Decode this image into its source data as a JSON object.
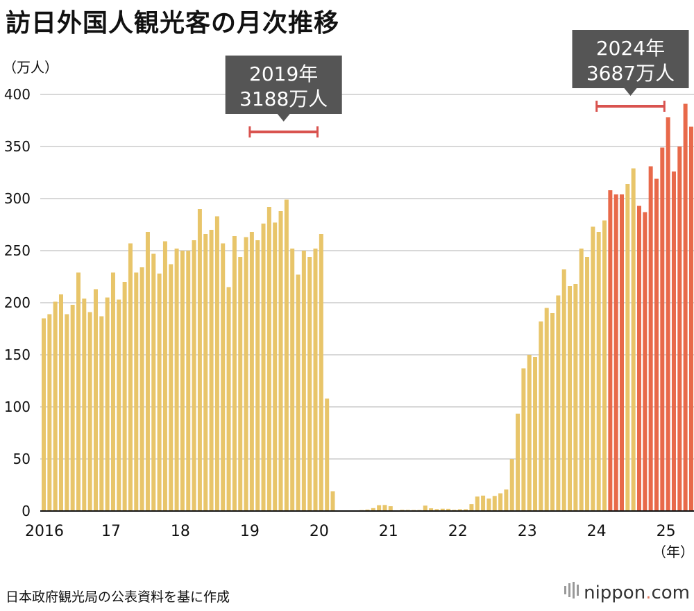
{
  "title": "訪日外国人観光客の月次推移",
  "source": "日本政府観光局の公表資料を基に作成",
  "logo": {
    "name": "nippon",
    "dot": ".",
    "suffix": "com"
  },
  "colors": {
    "bar_normal": "#e8c56a",
    "bar_highlight": "#e8694a",
    "grid": "#cccccc",
    "axis": "#111111",
    "callout_bg": "#555555",
    "bracket": "#d9534f"
  },
  "chart_data": {
    "type": "bar",
    "start": "2016-01",
    "ylabel": "（万人）",
    "xlabel": "（年）",
    "ylim": [
      0,
      400
    ],
    "yticks": [
      0,
      50,
      100,
      150,
      200,
      250,
      300,
      350,
      400
    ],
    "xtick_labels": [
      "2016",
      "17",
      "18",
      "19",
      "20",
      "21",
      "22",
      "23",
      "24",
      "25"
    ],
    "grid": true,
    "highlight_from": "2024-03",
    "highlight_except": [
      "2024-06",
      "2024-07"
    ],
    "values": [
      185,
      189,
      201,
      208,
      189,
      198,
      229,
      204,
      191,
      213,
      187,
      205,
      229,
      203,
      220,
      257,
      229,
      234,
      268,
      247,
      228,
      259,
      237,
      252,
      250,
      250,
      260,
      290,
      266,
      270,
      283,
      257,
      215,
      264,
      244,
      263,
      268,
      260,
      276,
      292,
      277,
      288,
      299,
      252,
      227,
      250,
      244,
      252,
      266,
      108,
      19,
      0.3,
      0.2,
      0.3,
      0.4,
      0.9,
      1.4,
      2.8,
      5.6,
      5.8,
      4.6,
      0.7,
      1.2,
      1.1,
      1.0,
      1.0,
      5.2,
      2.6,
      1.8,
      2.2,
      2.1,
      1.2,
      1.7,
      1.7,
      6.6,
      13.9,
      14.8,
      12.0,
      14.5,
      17.0,
      20.7,
      49.9,
      93.5,
      137.0,
      150.0,
      148.0,
      182.0,
      195.0,
      190.0,
      207.0,
      232.0,
      216.0,
      218.0,
      252.0,
      244.0,
      273.0,
      268.0,
      279.0,
      308.0,
      304.0,
      304.0,
      314.0,
      329.0,
      293.0,
      287.0,
      331.0,
      319.0,
      349.0,
      378.0,
      326.0,
      350.0,
      391.0,
      369.0
    ],
    "annotations": [
      {
        "year": "2019年",
        "total": "3188万人",
        "range": [
          "2019-01",
          "2019-12"
        ]
      },
      {
        "year": "2024年",
        "total": "3687万人",
        "range": [
          "2024-01",
          "2024-12"
        ]
      }
    ]
  }
}
